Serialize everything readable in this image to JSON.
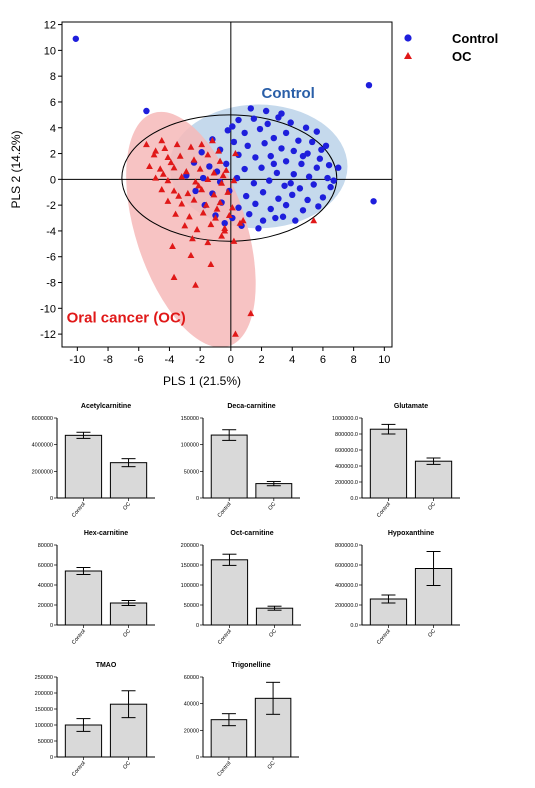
{
  "colors": {
    "control": "#1e1edc",
    "oc": "#e01818",
    "control_ellipse": "#c5d9ec",
    "oc_ellipse": "#f6b9b9",
    "control_label": "#2a5fa8",
    "oc_label": "#e01818",
    "bar_fill": "#d9d9d9"
  },
  "legend": [
    {
      "label": "Control",
      "marker": "circle-icon"
    },
    {
      "label": "OC",
      "marker": "triangle-icon"
    }
  ],
  "chart_data": [
    {
      "type": "scatter",
      "xlabel": "PLS 1 (21.5%)",
      "ylabel": "PLS 2 (14.2%)",
      "xlim": [
        -11,
        10.5
      ],
      "ylim": [
        -13,
        12.2
      ],
      "xticks": [
        -10,
        -8,
        -6,
        -4,
        -2,
        0,
        2,
        4,
        6,
        8,
        10
      ],
      "yticks": [
        12,
        10,
        8,
        6,
        4,
        2,
        0,
        -2,
        -4,
        -6,
        -8,
        -10,
        -12
      ],
      "annotations": [
        "Control",
        "Oral cancer (OC)"
      ],
      "series": [
        {
          "name": "Control",
          "marker": "circle",
          "points": [
            [
              -10.1,
              10.9
            ],
            [
              -5.5,
              5.3
            ],
            [
              9.0,
              7.3
            ],
            [
              9.3,
              -1.7
            ],
            [
              2.9,
              -3.0
            ],
            [
              4.2,
              -3.2
            ],
            [
              0.5,
              4.6
            ],
            [
              1.5,
              4.7
            ],
            [
              2.4,
              4.3
            ],
            [
              3.1,
              4.8
            ],
            [
              3.9,
              4.4
            ],
            [
              4.9,
              4.0
            ],
            [
              5.6,
              3.7
            ],
            [
              -0.2,
              3.8
            ],
            [
              0.9,
              3.6
            ],
            [
              1.9,
              3.9
            ],
            [
              2.8,
              3.2
            ],
            [
              3.6,
              3.6
            ],
            [
              4.4,
              3.0
            ],
            [
              5.3,
              2.9
            ],
            [
              6.2,
              2.6
            ],
            [
              -1.2,
              3.1
            ],
            [
              0.2,
              2.9
            ],
            [
              1.1,
              2.6
            ],
            [
              2.2,
              2.8
            ],
            [
              3.3,
              2.4
            ],
            [
              4.1,
              2.2
            ],
            [
              5.0,
              2.0
            ],
            [
              5.8,
              1.6
            ],
            [
              -1.9,
              2.1
            ],
            [
              -0.7,
              2.3
            ],
            [
              0.5,
              1.9
            ],
            [
              1.6,
              1.7
            ],
            [
              2.6,
              1.8
            ],
            [
              3.6,
              1.4
            ],
            [
              4.6,
              1.2
            ],
            [
              5.6,
              0.9
            ],
            [
              6.4,
              1.1
            ],
            [
              -2.4,
              1.3
            ],
            [
              -1.4,
              1.0
            ],
            [
              -0.3,
              1.2
            ],
            [
              0.9,
              0.8
            ],
            [
              2.0,
              0.9
            ],
            [
              3.0,
              0.5
            ],
            [
              4.1,
              0.4
            ],
            [
              5.1,
              0.2
            ],
            [
              6.3,
              0.1
            ],
            [
              7.0,
              0.9
            ],
            [
              -2.9,
              0.3
            ],
            [
              -1.8,
              0.1
            ],
            [
              -0.7,
              -0.2
            ],
            [
              0.4,
              0.1
            ],
            [
              1.5,
              -0.3
            ],
            [
              2.5,
              -0.1
            ],
            [
              3.5,
              -0.5
            ],
            [
              4.5,
              -0.7
            ],
            [
              5.4,
              -0.4
            ],
            [
              6.5,
              -0.6
            ],
            [
              -2.3,
              -0.9
            ],
            [
              -1.2,
              -1.1
            ],
            [
              -0.1,
              -0.9
            ],
            [
              1.0,
              -1.3
            ],
            [
              2.1,
              -1.0
            ],
            [
              3.1,
              -1.5
            ],
            [
              4.0,
              -1.2
            ],
            [
              5.0,
              -1.6
            ],
            [
              6.0,
              -1.4
            ],
            [
              -1.7,
              -2.0
            ],
            [
              -0.6,
              -1.8
            ],
            [
              0.5,
              -2.2
            ],
            [
              1.6,
              -1.9
            ],
            [
              2.6,
              -2.3
            ],
            [
              3.6,
              -2.0
            ],
            [
              4.7,
              -2.4
            ],
            [
              5.7,
              -2.1
            ],
            [
              -1.0,
              -2.8
            ],
            [
              0.1,
              -3.0
            ],
            [
              1.2,
              -2.7
            ],
            [
              2.1,
              -3.2
            ],
            [
              3.4,
              -2.9
            ],
            [
              0.7,
              -3.6
            ],
            [
              1.8,
              -3.8
            ],
            [
              -0.4,
              -3.4
            ],
            [
              1.3,
              5.5
            ],
            [
              2.3,
              5.3
            ],
            [
              3.3,
              5.1
            ],
            [
              0.1,
              4.1
            ],
            [
              4.7,
              1.8
            ],
            [
              5.9,
              2.3
            ],
            [
              6.7,
              -0.1
            ],
            [
              -0.9,
              0.6
            ],
            [
              2.8,
              1.2
            ],
            [
              3.9,
              -0.3
            ]
          ]
        },
        {
          "name": "OC",
          "marker": "triangle",
          "points": [
            [
              -5.5,
              2.7
            ],
            [
              -4.5,
              3.0
            ],
            [
              -4.3,
              2.4
            ],
            [
              -3.5,
              2.7
            ],
            [
              -2.6,
              2.5
            ],
            [
              -1.9,
              2.7
            ],
            [
              -0.8,
              2.2
            ],
            [
              0.3,
              2.0
            ],
            [
              -5.0,
              1.9
            ],
            [
              -4.1,
              1.7
            ],
            [
              -3.3,
              1.8
            ],
            [
              -2.4,
              1.5
            ],
            [
              -1.5,
              1.9
            ],
            [
              -0.7,
              1.4
            ],
            [
              -5.3,
              1.0
            ],
            [
              -4.6,
              0.8
            ],
            [
              -3.7,
              0.9
            ],
            [
              -2.9,
              0.6
            ],
            [
              -2.0,
              0.8
            ],
            [
              -1.1,
              0.5
            ],
            [
              -0.3,
              0.7
            ],
            [
              -4.9,
              0.1
            ],
            [
              -4.1,
              -0.1
            ],
            [
              -3.2,
              0.2
            ],
            [
              -2.3,
              -0.2
            ],
            [
              -1.5,
              0.0
            ],
            [
              -0.6,
              -0.3
            ],
            [
              0.2,
              -0.1
            ],
            [
              -4.5,
              -0.8
            ],
            [
              -3.7,
              -0.9
            ],
            [
              -2.8,
              -1.1
            ],
            [
              -1.9,
              -0.8
            ],
            [
              -1.1,
              -1.2
            ],
            [
              -0.2,
              -1.0
            ],
            [
              -4.1,
              -1.7
            ],
            [
              -3.2,
              -1.9
            ],
            [
              -2.4,
              -1.6
            ],
            [
              -1.6,
              -2.0
            ],
            [
              -0.7,
              -1.8
            ],
            [
              0.1,
              -2.2
            ],
            [
              -3.6,
              -2.7
            ],
            [
              -2.7,
              -2.9
            ],
            [
              -1.8,
              -2.6
            ],
            [
              -1.0,
              -3.0
            ],
            [
              -0.1,
              -2.8
            ],
            [
              0.8,
              -3.2
            ],
            [
              -3.0,
              -3.6
            ],
            [
              -2.2,
              -3.9
            ],
            [
              -1.3,
              -3.5
            ],
            [
              -0.4,
              -3.8
            ],
            [
              0.6,
              -3.4
            ],
            [
              -2.5,
              -4.6
            ],
            [
              -1.5,
              -4.9
            ],
            [
              -0.6,
              -4.4
            ],
            [
              -3.8,
              -5.2
            ],
            [
              -2.6,
              -5.9
            ],
            [
              -1.3,
              -6.6
            ],
            [
              -3.7,
              -7.6
            ],
            [
              -2.3,
              -8.2
            ],
            [
              -0.4,
              -4.0
            ],
            [
              0.2,
              -4.8
            ],
            [
              1.3,
              -10.4
            ],
            [
              0.3,
              -12.0
            ],
            [
              5.4,
              -3.2
            ],
            [
              -4.9,
              2.2
            ],
            [
              -3.9,
              1.3
            ],
            [
              -1.2,
              3.0
            ],
            [
              -2.1,
              -0.5
            ],
            [
              -3.4,
              -1.3
            ],
            [
              -0.9,
              -2.3
            ],
            [
              -0.5,
              0.3
            ],
            [
              -4.4,
              0.4
            ]
          ]
        }
      ]
    },
    {
      "type": "bar",
      "title": "Acetylcarnitine",
      "categories": [
        "Control",
        "OC"
      ],
      "values": [
        4700000,
        2650000
      ],
      "errors": [
        230000,
        300000
      ],
      "ylim": [
        0,
        6000000
      ],
      "yticks": [
        "6000000",
        "4000000",
        "2000000",
        "0"
      ]
    },
    {
      "type": "bar",
      "title": "Deca-carnitine",
      "categories": [
        "Control",
        "OC"
      ],
      "values": [
        118000,
        27000
      ],
      "errors": [
        10000,
        4000
      ],
      "ylim": [
        0,
        150000
      ],
      "yticks": [
        "150000",
        "100000",
        "50000",
        "0"
      ]
    },
    {
      "type": "bar",
      "title": "Glutamate",
      "categories": [
        "Control",
        "OC"
      ],
      "values": [
        860000,
        460000
      ],
      "errors": [
        60000,
        40000
      ],
      "ylim": [
        0,
        1000000
      ],
      "yticks": [
        "1000000.0",
        "800000.0",
        "600000.0",
        "400000.0",
        "200000.0",
        "0.0"
      ]
    },
    {
      "type": "bar",
      "title": "Hex-carnitine",
      "categories": [
        "Control",
        "OC"
      ],
      "values": [
        54000,
        22000
      ],
      "errors": [
        3500,
        2500
      ],
      "ylim": [
        0,
        80000
      ],
      "yticks": [
        "80000",
        "60000",
        "40000",
        "20000",
        "0"
      ]
    },
    {
      "type": "bar",
      "title": "Oct-carnitine",
      "categories": [
        "Control",
        "OC"
      ],
      "values": [
        163000,
        42000
      ],
      "errors": [
        14000,
        5000
      ],
      "ylim": [
        0,
        200000
      ],
      "yticks": [
        "200000",
        "150000",
        "100000",
        "50000",
        "0"
      ]
    },
    {
      "type": "bar",
      "title": "Hypoxanthine",
      "categories": [
        "Control",
        "OC"
      ],
      "values": [
        260000,
        565000
      ],
      "errors": [
        40000,
        170000
      ],
      "ylim": [
        0,
        800000
      ],
      "yticks": [
        "800000.0",
        "600000.0",
        "400000.0",
        "200000.0",
        "0.0"
      ]
    },
    {
      "type": "bar",
      "title": "TMAO",
      "categories": [
        "Control",
        "OC"
      ],
      "values": [
        100000,
        165000
      ],
      "errors": [
        20000,
        42000
      ],
      "ylim": [
        0,
        250000
      ],
      "yticks": [
        "250000",
        "200000",
        "150000",
        "100000",
        "50000",
        "0"
      ]
    },
    {
      "type": "bar",
      "title": "Trigonelline",
      "categories": [
        "Control",
        "OC"
      ],
      "values": [
        28000,
        44000
      ],
      "errors": [
        4500,
        12000
      ],
      "ylim": [
        0,
        60000
      ],
      "yticks": [
        "60000",
        "40000",
        "20000",
        "0"
      ]
    }
  ]
}
